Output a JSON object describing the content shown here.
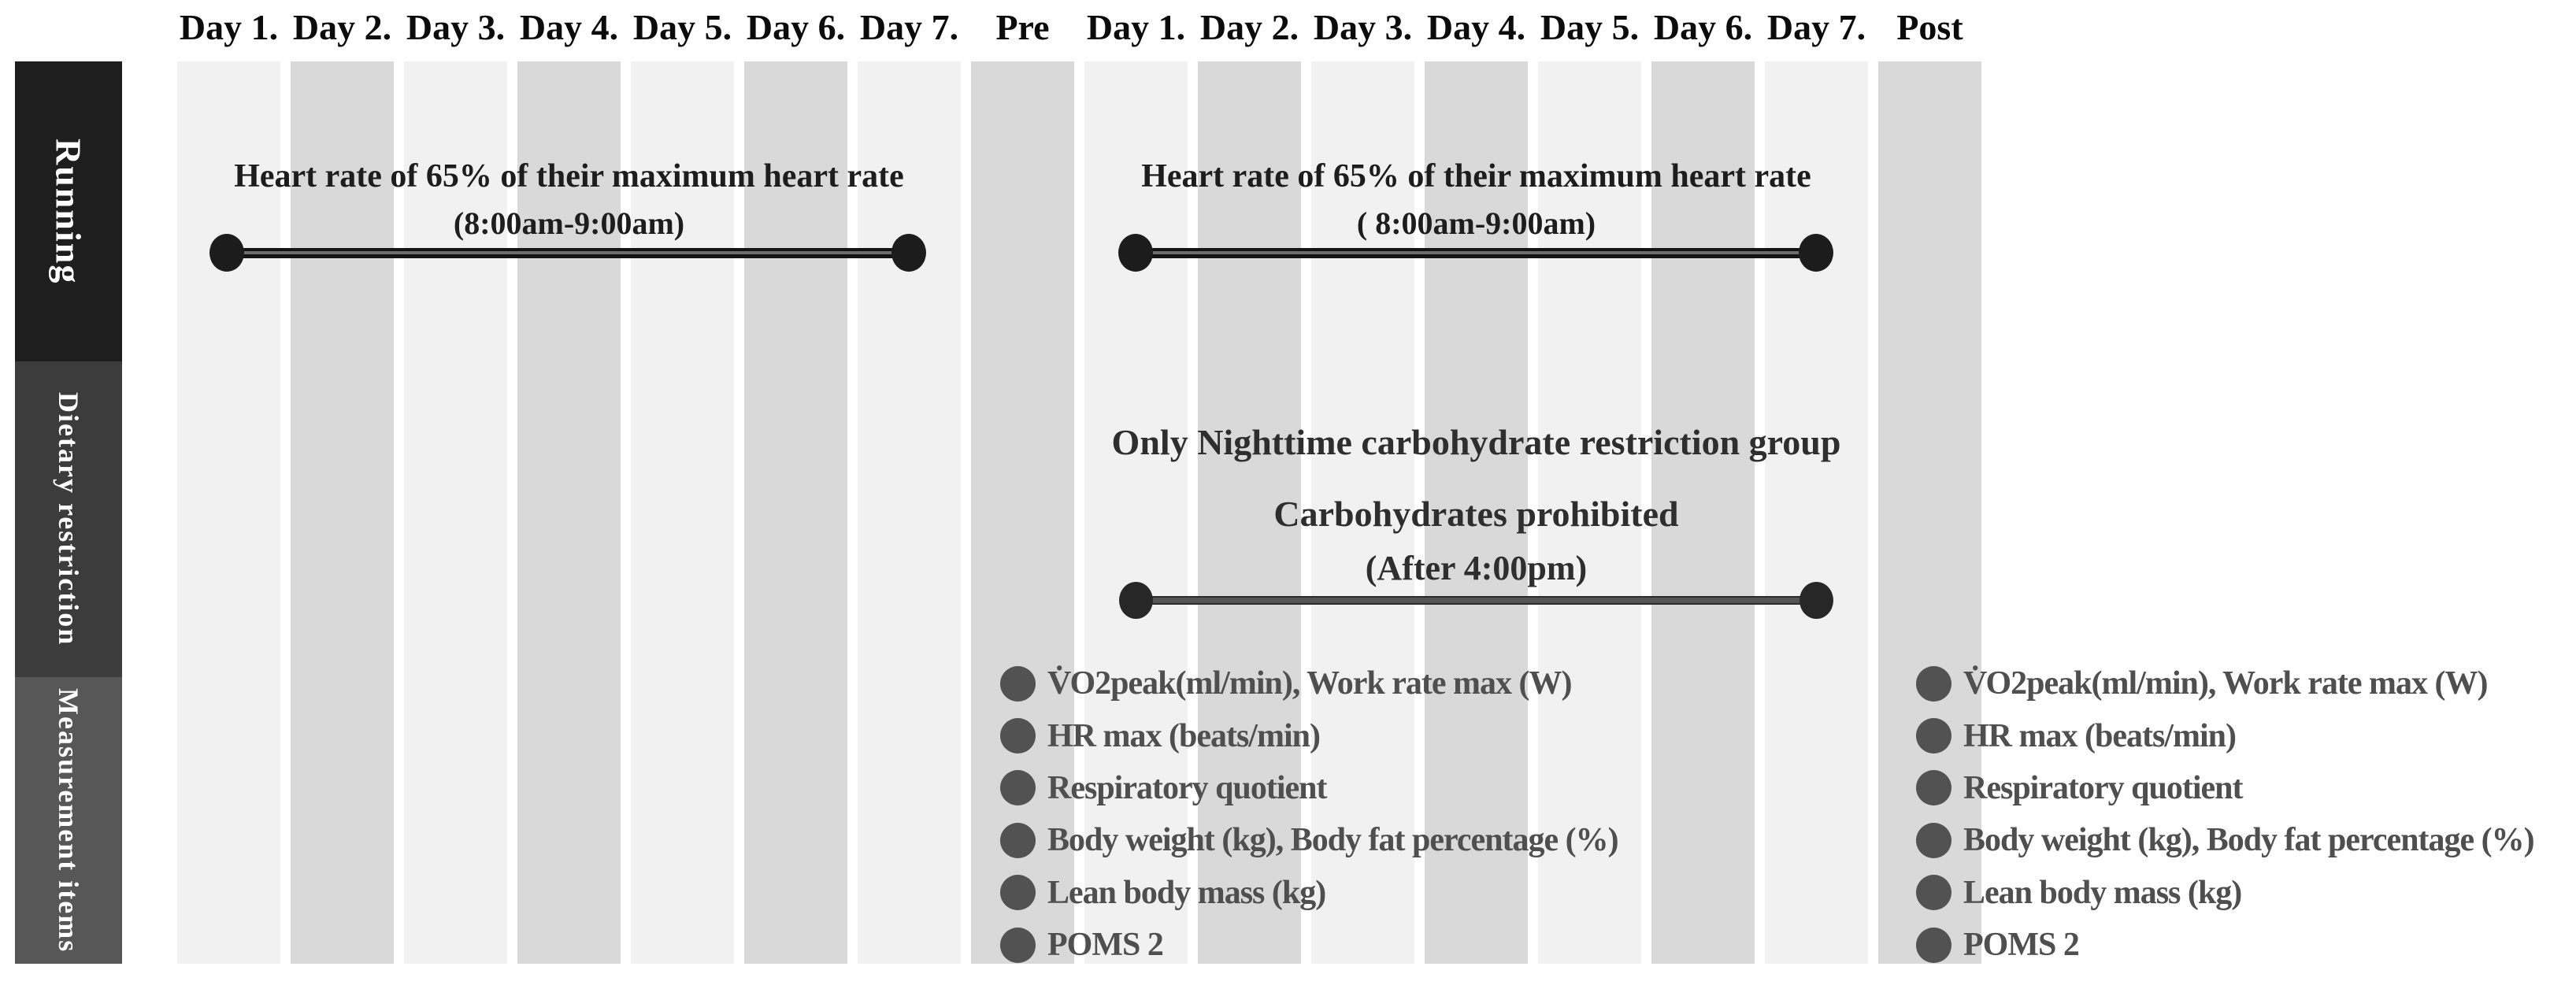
{
  "columns": {
    "labels": [
      "Day 1.",
      "Day 2.",
      "Day 3.",
      "Day 4.",
      "Day 5.",
      "Day 6.",
      "Day 7.",
      "Pre",
      "Day 1.",
      "Day 2.",
      "Day 3.",
      "Day 4.",
      "Day 5.",
      "Day 6.",
      "Day 7.",
      "Post"
    ]
  },
  "sidebar": {
    "sections": [
      {
        "label": "Running"
      },
      {
        "label": "Dietary restriction"
      },
      {
        "label": "Measurement items"
      }
    ]
  },
  "running": {
    "week1": {
      "title": "Heart rate of 65% of their maximum heart rate",
      "time": "(8:00am-9:00am)"
    },
    "week2": {
      "title": "Heart rate of 65% of their maximum heart rate",
      "time": "( 8:00am-9:00am)"
    }
  },
  "dietary": {
    "group": "Only Nighttime carbohydrate restriction group",
    "rule": "Carbohydrates prohibited",
    "time": "(After 4:00pm)"
  },
  "measurements": {
    "pre": [
      "V̇O2peak(ml/min), Work rate max (W)",
      "HR max (beats/min)",
      "Respiratory quotient",
      "Body weight (kg), Body fat percentage (%)",
      "Lean body mass (kg)",
      "POMS 2"
    ],
    "post": [
      "V̇O2peak(ml/min), Work rate max (W)",
      "HR max (beats/min)",
      "Respiratory quotient",
      "Body weight (kg), Body fat percentage (%)",
      "Lean body mass (kg)",
      "POMS 2"
    ]
  },
  "colors": {
    "stripe-light": "#f1f1f1",
    "stripe-dark": "#d9d9d9",
    "sidebar-running": "#1e1e1e",
    "sidebar-dietary": "#3c3c3c",
    "sidebar-measurement": "#575757"
  }
}
